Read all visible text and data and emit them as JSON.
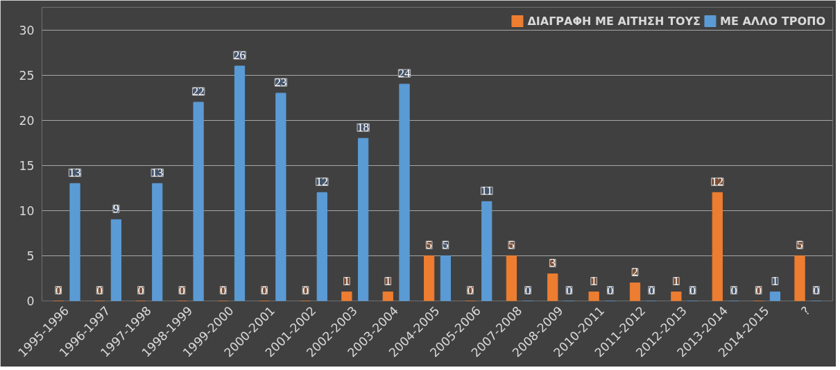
{
  "chart_data": {
    "type": "bar",
    "categories": [
      "1995-1996",
      "1996-1997",
      "1997-1998",
      "1998-1999",
      "1999-2000",
      "2000-2001",
      "2001-2002",
      "2002-2003",
      "2003-2004",
      "2004-2005",
      "2005-2006",
      "2007-2008",
      "2008-2009",
      "2010-2011",
      "2011-2012",
      "2012-2013",
      "2013-2014",
      "2014-2015",
      "?"
    ],
    "series": [
      {
        "name": "ΔΙΑΓΡΑΦΗ ΜΕ ΑΙΤΗΣΗ ΤΟΥΣ",
        "color": "#ed7d31",
        "values": [
          0,
          0,
          0,
          0,
          0,
          0,
          0,
          1,
          1,
          5,
          0,
          5,
          3,
          1,
          2,
          1,
          12,
          0,
          5
        ]
      },
      {
        "name": "ΜΕ ΑΛΛΟ ΤΡΟΠΟ",
        "color": "#5b9bd5",
        "values": [
          13,
          9,
          13,
          22,
          26,
          23,
          12,
          18,
          24,
          5,
          11,
          0,
          0,
          0,
          0,
          0,
          0,
          1,
          0
        ]
      }
    ],
    "ylim": [
      0,
      30
    ],
    "yticks": [
      0,
      5,
      10,
      15,
      20,
      25,
      30
    ],
    "grid": "y",
    "legend": "top right",
    "data_labels": true
  }
}
